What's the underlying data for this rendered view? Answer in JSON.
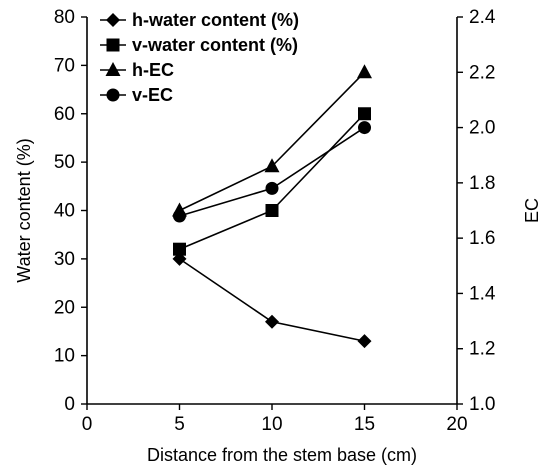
{
  "chart_data": {
    "type": "line",
    "xlabel": "Distance from the stem base (cm)",
    "ylabel_left": "Water content (%)",
    "ylabel_right": "EC",
    "xlim": [
      0,
      20
    ],
    "ylim_left": [
      0,
      80
    ],
    "ylim_right": [
      1.0,
      2.4
    ],
    "x_ticks": [
      "0",
      "5",
      "10",
      "15",
      "20"
    ],
    "y_left_ticks": [
      "0",
      "10",
      "20",
      "30",
      "40",
      "50",
      "60",
      "70",
      "80"
    ],
    "y_right_ticks": [
      "1.0",
      "1.2",
      "1.4",
      "1.6",
      "1.8",
      "2.0",
      "2.2",
      "2.4"
    ],
    "grid": false,
    "legend_position": "top-left",
    "series": [
      {
        "name": "h-water content (%)",
        "marker": "diamond",
        "axis": "left",
        "x": [
          5,
          10,
          15
        ],
        "y": [
          30,
          17,
          13
        ]
      },
      {
        "name": "v-water content (%)",
        "marker": "square",
        "axis": "left",
        "x": [
          5,
          10,
          15
        ],
        "y": [
          32,
          40,
          60
        ]
      },
      {
        "name": "h-EC",
        "marker": "triangle",
        "axis": "right",
        "x": [
          5,
          10,
          15
        ],
        "y": [
          1.7,
          1.86,
          2.2
        ]
      },
      {
        "name": "v-EC",
        "marker": "circle",
        "axis": "right",
        "x": [
          5,
          10,
          15
        ],
        "y": [
          1.68,
          1.78,
          2.0
        ]
      }
    ]
  }
}
